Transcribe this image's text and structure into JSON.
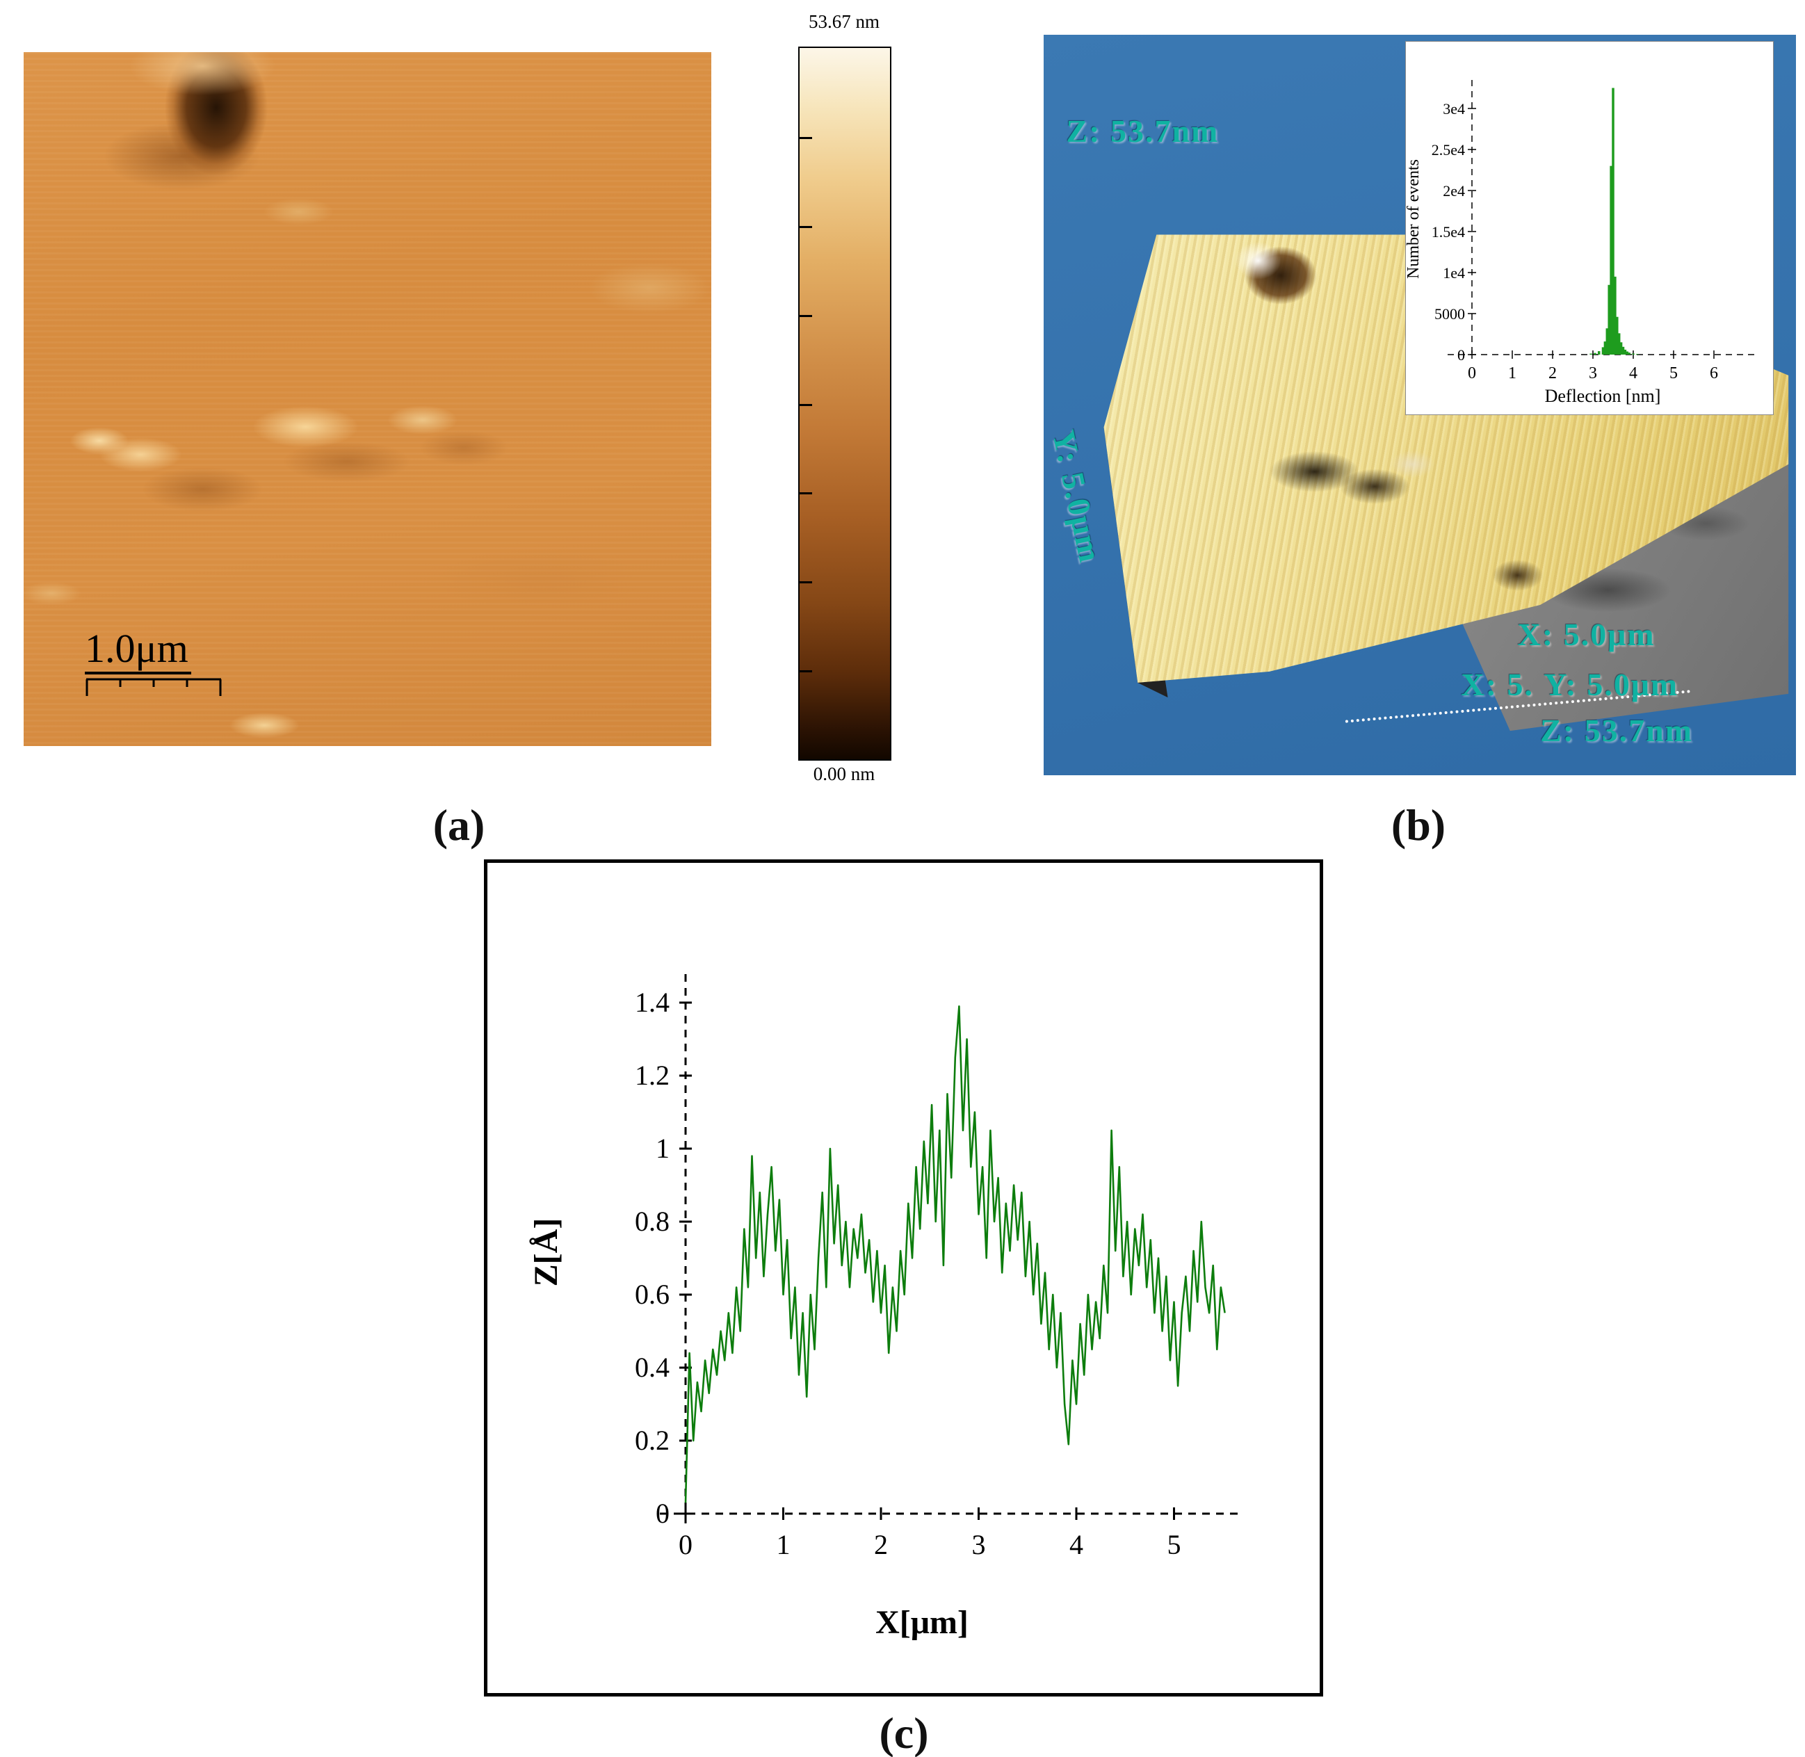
{
  "figure": {
    "captions": {
      "a": "(a)",
      "b": "(b)",
      "c": "(c)"
    }
  },
  "panel_a": {
    "scale_bar_label": "1.0μm",
    "colorbar_max": "53.67 nm",
    "colorbar_min": "0.00 nm"
  },
  "panel_b": {
    "label_z_top": "Z: 53.7nm",
    "label_y_left": "Y: 5.0μm",
    "label_x_right": "X: 5.0μm",
    "label_x_partial": "X: 5.",
    "label_y_right": "Y: 5.0μm",
    "label_z_right": "Z: 53.7nm",
    "background_color": "#3677b3",
    "label_color": "#10b2a2"
  },
  "chart_data": [
    {
      "type": "bar",
      "title": "",
      "xlabel": "Deflection [nm]",
      "ylabel": "Number of events",
      "xlim": [
        -0.6,
        7.1
      ],
      "ylim": [
        0,
        33000
      ],
      "xticks": [
        0,
        1,
        2,
        3,
        4,
        5,
        6
      ],
      "yticks": [
        {
          "value": 0,
          "label": "0"
        },
        {
          "value": 5000,
          "label": "5000"
        },
        {
          "value": 10000,
          "label": "1e4"
        },
        {
          "value": 15000,
          "label": "1.5e4"
        },
        {
          "value": 20000,
          "label": "2e4"
        },
        {
          "value": 25000,
          "label": "2.5e4"
        },
        {
          "value": 30000,
          "label": "3e4"
        }
      ],
      "grid": false,
      "legend": false,
      "bar_color": "#1e9c1e",
      "bars": [
        {
          "x": 2.95,
          "count": 120
        },
        {
          "x": 3.05,
          "count": 200
        },
        {
          "x": 3.15,
          "count": 420
        },
        {
          "x": 3.25,
          "count": 900
        },
        {
          "x": 3.3,
          "count": 1600
        },
        {
          "x": 3.35,
          "count": 3200
        },
        {
          "x": 3.4,
          "count": 8500
        },
        {
          "x": 3.45,
          "count": 23000
        },
        {
          "x": 3.5,
          "count": 32500
        },
        {
          "x": 3.55,
          "count": 9500
        },
        {
          "x": 3.6,
          "count": 4600
        },
        {
          "x": 3.65,
          "count": 2600
        },
        {
          "x": 3.7,
          "count": 1500
        },
        {
          "x": 3.75,
          "count": 950
        },
        {
          "x": 3.8,
          "count": 600
        },
        {
          "x": 3.85,
          "count": 380
        },
        {
          "x": 3.9,
          "count": 240
        },
        {
          "x": 4.0,
          "count": 130
        },
        {
          "x": 4.1,
          "count": 70
        }
      ]
    },
    {
      "type": "line",
      "title": "",
      "xlabel": "X[μm]",
      "ylabel": "Z[Å]",
      "xlim": [
        -0.9,
        5.8
      ],
      "ylim": [
        -0.25,
        1.47
      ],
      "xticks": [
        0,
        1,
        2,
        3,
        4,
        5
      ],
      "yticks": [
        0,
        0.2,
        0.4,
        0.6,
        0.8,
        1,
        1.2,
        1.4
      ],
      "grid": false,
      "legend": false,
      "line_color": "#0d7d0d",
      "x_start": 0,
      "x_step": 0.04,
      "z_values": [
        0.03,
        0.44,
        0.2,
        0.36,
        0.28,
        0.42,
        0.33,
        0.45,
        0.38,
        0.5,
        0.42,
        0.55,
        0.44,
        0.62,
        0.5,
        0.78,
        0.62,
        0.98,
        0.7,
        0.88,
        0.65,
        0.82,
        0.95,
        0.72,
        0.86,
        0.6,
        0.75,
        0.48,
        0.62,
        0.38,
        0.55,
        0.32,
        0.6,
        0.45,
        0.7,
        0.88,
        0.62,
        1.0,
        0.74,
        0.9,
        0.68,
        0.8,
        0.62,
        0.78,
        0.7,
        0.82,
        0.66,
        0.75,
        0.58,
        0.72,
        0.55,
        0.68,
        0.44,
        0.62,
        0.5,
        0.72,
        0.6,
        0.85,
        0.7,
        0.95,
        0.78,
        1.02,
        0.85,
        1.12,
        0.8,
        1.05,
        0.68,
        1.15,
        0.92,
        1.25,
        1.39,
        1.05,
        1.3,
        0.95,
        1.1,
        0.82,
        0.95,
        0.7,
        1.05,
        0.8,
        0.92,
        0.66,
        0.85,
        0.72,
        0.9,
        0.75,
        0.88,
        0.65,
        0.8,
        0.6,
        0.74,
        0.52,
        0.66,
        0.45,
        0.6,
        0.4,
        0.55,
        0.3,
        0.19,
        0.42,
        0.3,
        0.52,
        0.38,
        0.6,
        0.45,
        0.58,
        0.48,
        0.68,
        0.55,
        1.05,
        0.72,
        0.95,
        0.65,
        0.8,
        0.6,
        0.78,
        0.68,
        0.82,
        0.62,
        0.75,
        0.55,
        0.7,
        0.5,
        0.65,
        0.42,
        0.58,
        0.35,
        0.55,
        0.65,
        0.5,
        0.72,
        0.58,
        0.8,
        0.62,
        0.55,
        0.68,
        0.45,
        0.62,
        0.55
      ]
    }
  ]
}
